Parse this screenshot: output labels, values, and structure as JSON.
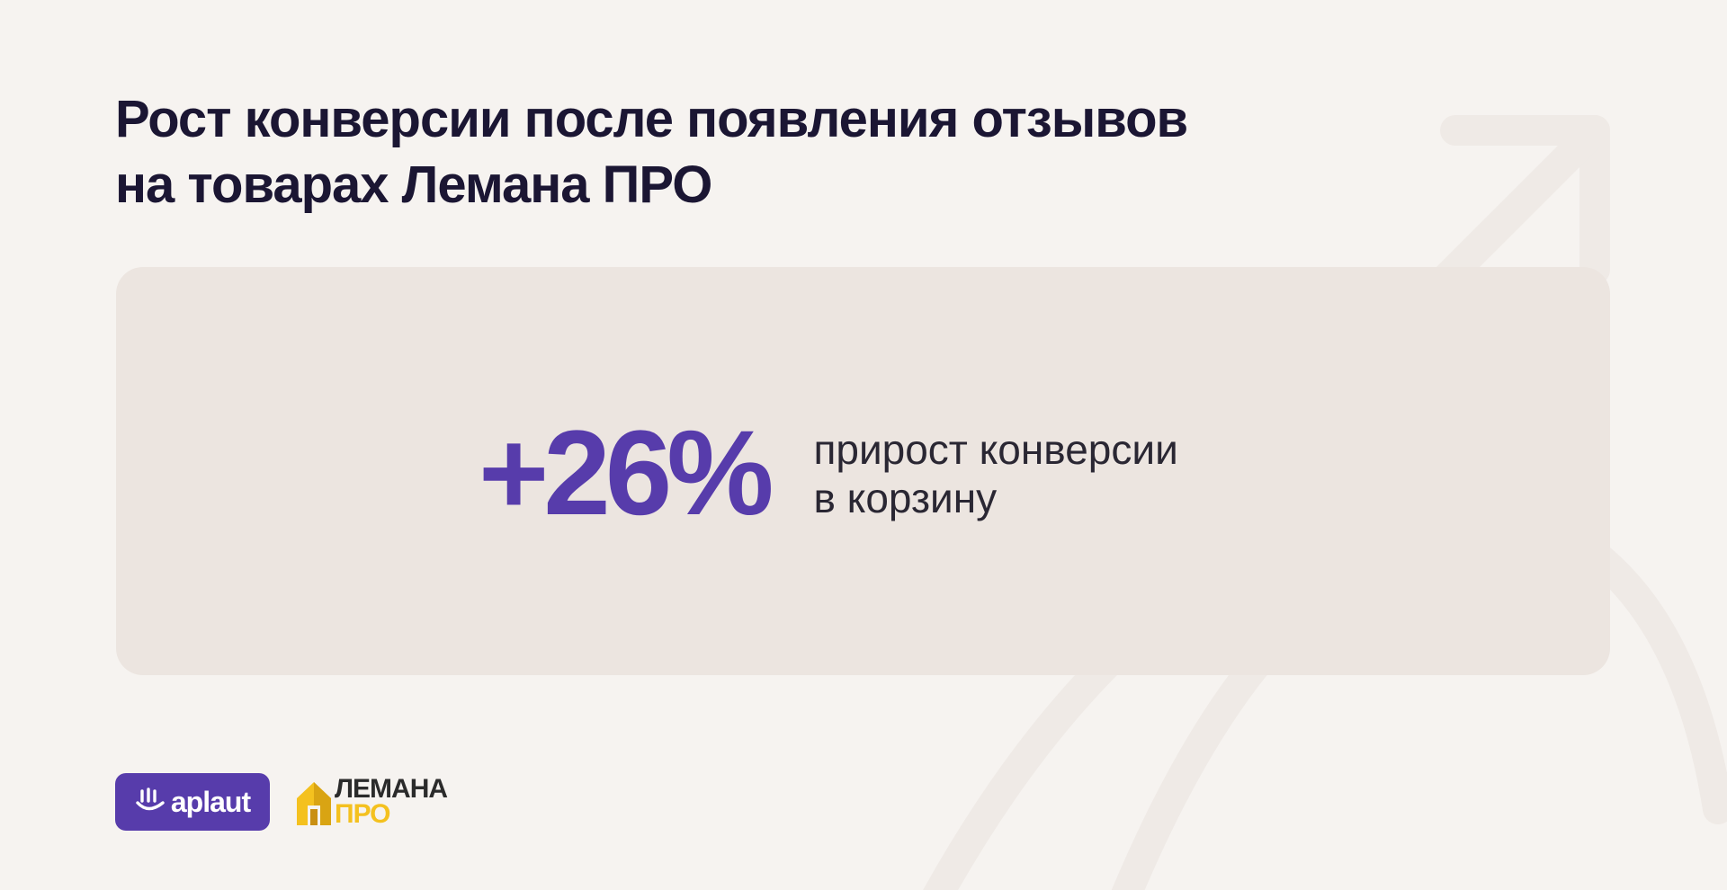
{
  "title": {
    "line1": "Рост конверсии после появления отзывов",
    "line2": "на товарах Лемана ПРО"
  },
  "stat": {
    "value": "+26%",
    "label_line1": "прирост конверсии",
    "label_line2": "в корзину"
  },
  "logos": {
    "aplaut": "aplaut",
    "lemana_line1": "ЛЕМАНА",
    "lemana_line2": "ПРО"
  },
  "colors": {
    "background": "#f6f3f0",
    "card": "#ece5e0",
    "accent": "#573cab",
    "title": "#1b1633",
    "lemana_yellow": "#f4c11f"
  },
  "icons": {
    "background": "arrow-decoration-icon",
    "aplaut": "hand-clap-icon",
    "lemana": "house-icon"
  }
}
